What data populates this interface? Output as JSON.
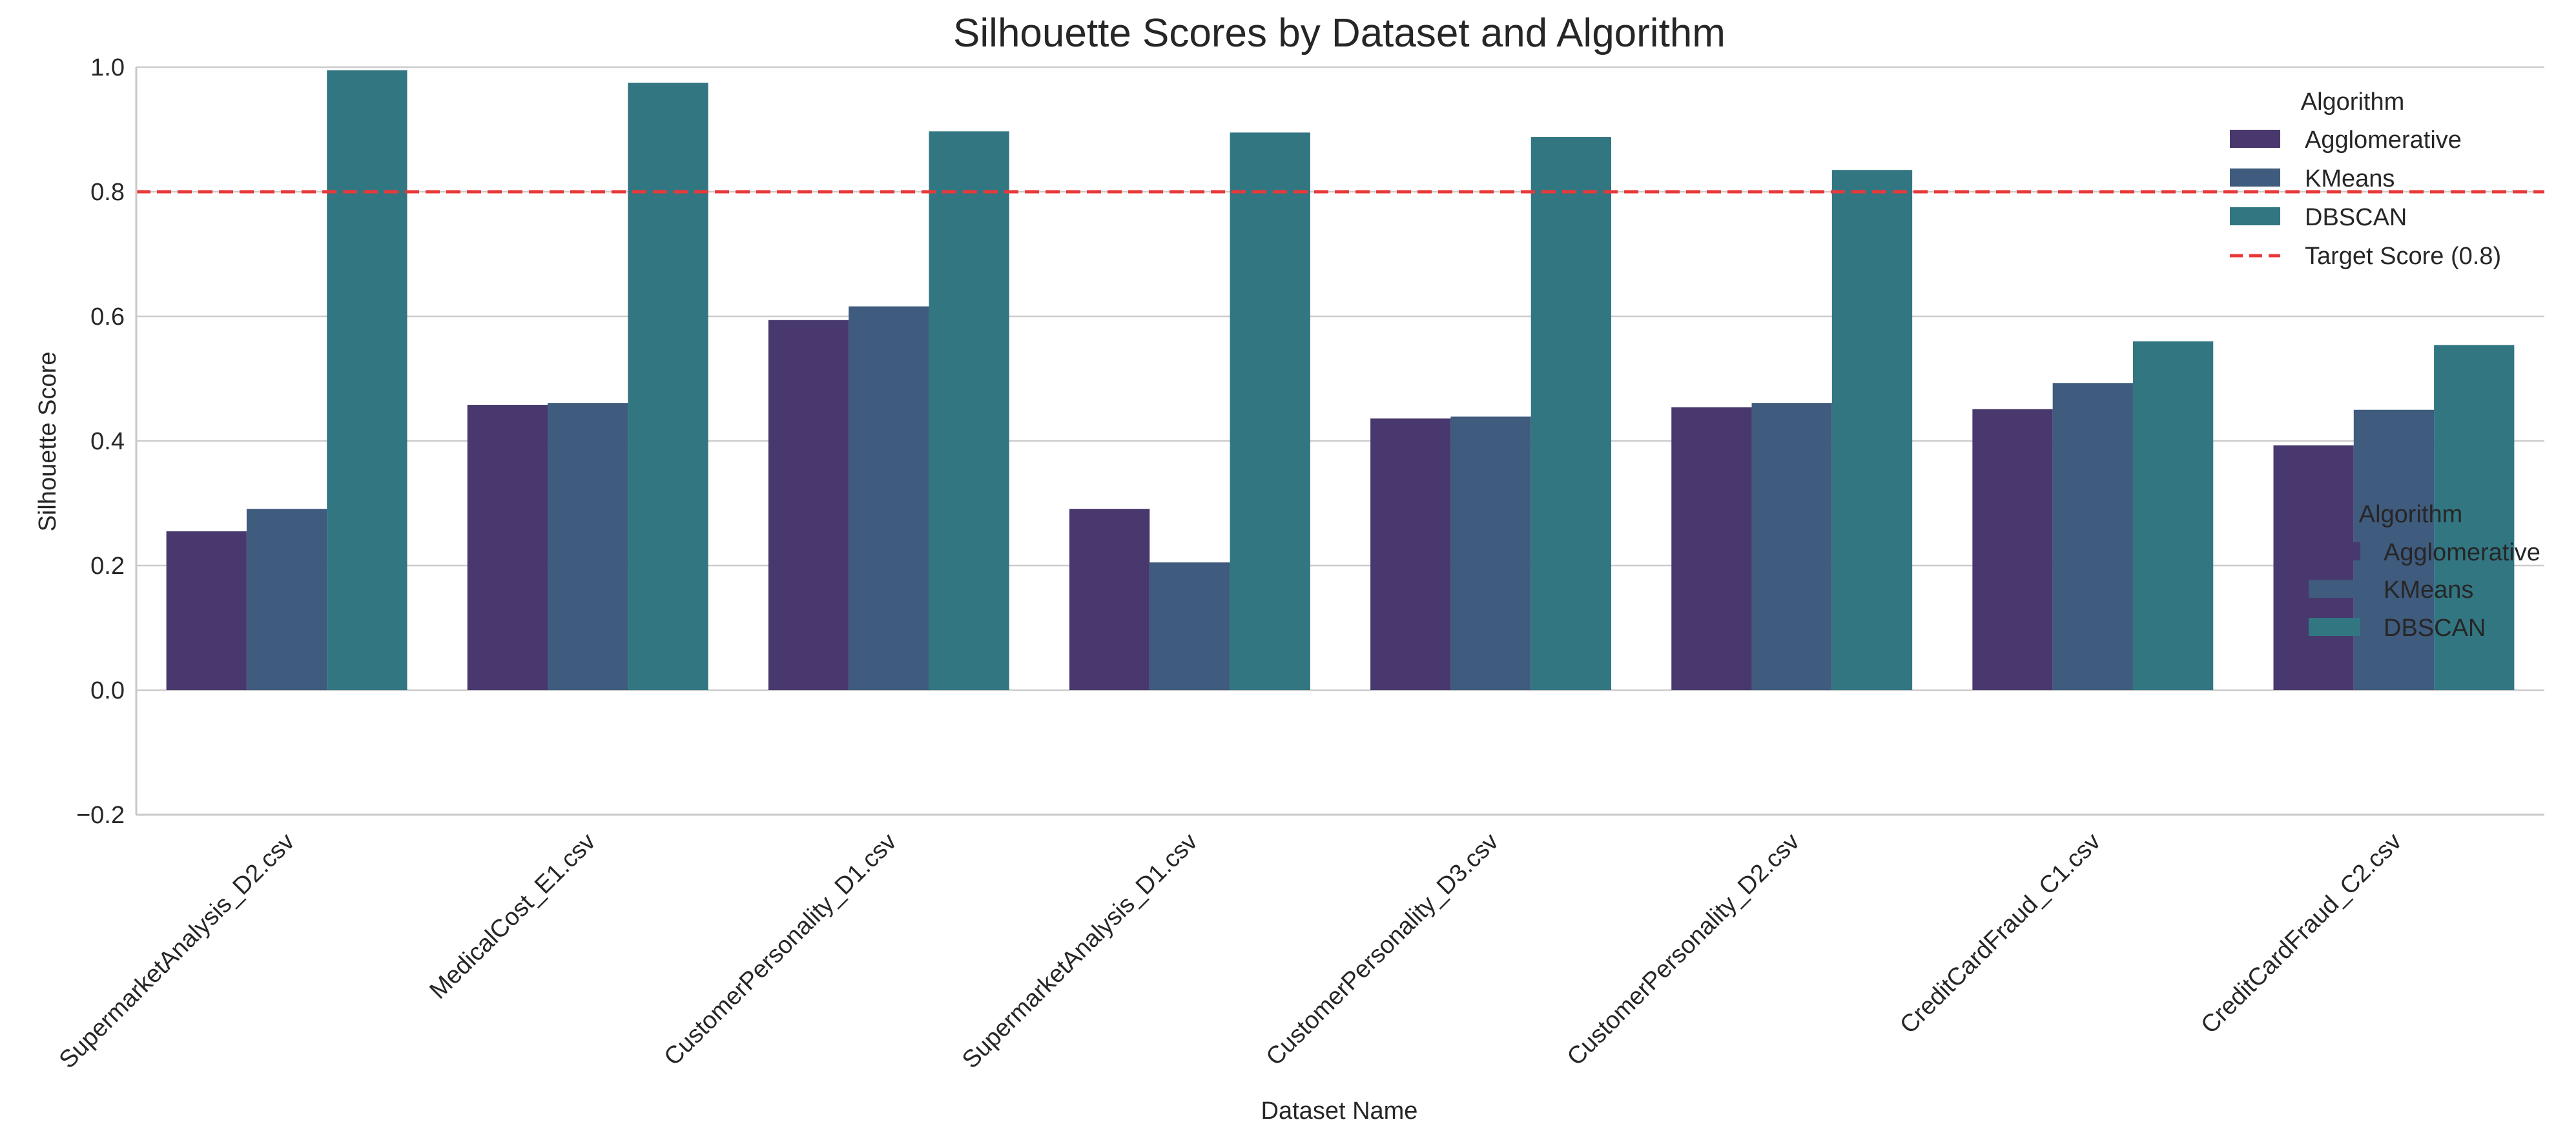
{
  "chart_data": {
    "type": "bar",
    "title": "Silhouette Scores by Dataset and Algorithm",
    "xlabel": "Dataset Name",
    "ylabel": "Silhouette Score",
    "ylim": [
      -0.2,
      1.0
    ],
    "yticks": [
      -0.2,
      0.0,
      0.2,
      0.4,
      0.6,
      0.8,
      1.0
    ],
    "ytick_labels": [
      "−0.2",
      "0.0",
      "0.2",
      "0.4",
      "0.6",
      "0.8",
      "1.0"
    ],
    "grid": "horizontal",
    "categories": [
      "SupermarketAnalysis_D2.csv",
      "MedicalCost_E1.csv",
      "CustomerPersonality_D1.csv",
      "SupermarketAnalysis_D1.csv",
      "CustomerPersonality_D3.csv",
      "CustomerPersonality_D2.csv",
      "CreditCardFraud_C1.csv",
      "CreditCardFraud_C2.csv"
    ],
    "series": [
      {
        "name": "Agglomerative",
        "color": "#48386e",
        "values": [
          0.255,
          0.458,
          0.594,
          0.291,
          0.436,
          0.454,
          0.451,
          0.393
        ]
      },
      {
        "name": "KMeans",
        "color": "#3f5b7e",
        "values": [
          0.291,
          0.461,
          0.616,
          0.205,
          0.439,
          0.461,
          0.493,
          0.45
        ]
      },
      {
        "name": "DBSCAN",
        "color": "#327682",
        "values": [
          0.995,
          0.975,
          0.897,
          0.895,
          0.888,
          0.835,
          0.56,
          0.554
        ]
      }
    ],
    "reference_line": {
      "name": "Target Score (0.8)",
      "value": 0.8,
      "color": "#e8393a",
      "style": "dashed"
    },
    "legends": [
      {
        "title": "Algorithm",
        "placement": "top-right",
        "entries": [
          "Agglomerative",
          "KMeans",
          "DBSCAN",
          "Target Score (0.8)"
        ]
      },
      {
        "title": "Algorithm",
        "placement": "center-right",
        "entries": [
          "Agglomerative",
          "KMeans",
          "DBSCAN"
        ]
      }
    ]
  }
}
